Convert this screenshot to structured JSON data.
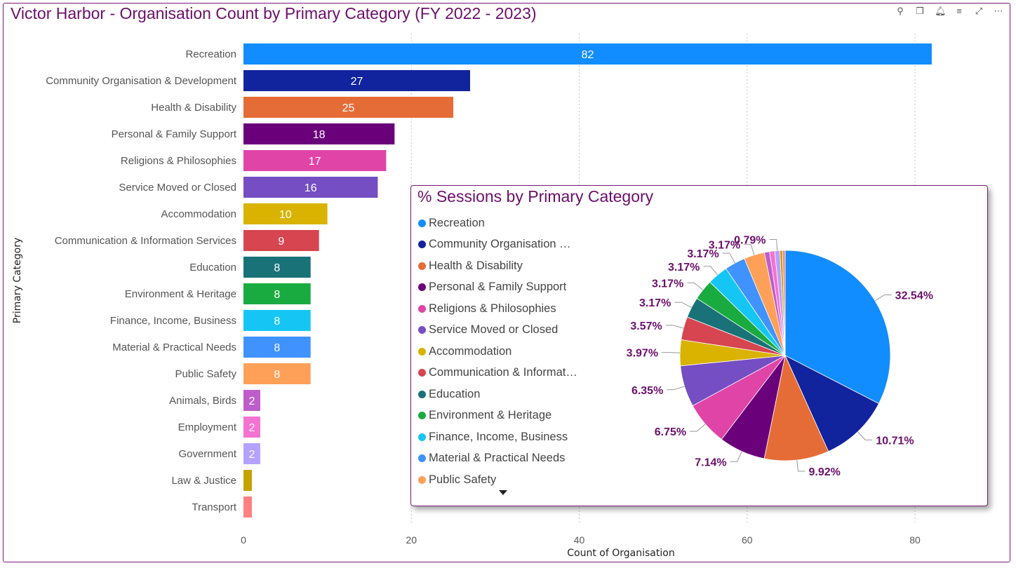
{
  "main_title": "Victor Harbor - Organisation Count by Primary Category (FY 2022 - 2023)",
  "toolbar_icons": [
    "pin-icon",
    "copy-icon",
    "bell-icon",
    "filter-icon",
    "expand-icon",
    "more-icon"
  ],
  "chart_data": [
    {
      "type": "bar",
      "orientation": "horizontal",
      "xlabel": "Count of Organisation",
      "ylabel": "Primary Category",
      "xlim": [
        0,
        90
      ],
      "xticks": [
        0,
        20,
        40,
        60,
        80
      ],
      "grid": true,
      "categories": [
        "Recreation",
        "Community Organisation & Development",
        "Health & Disability",
        "Personal & Family Support",
        "Religions & Philosophies",
        "Service Moved or Closed",
        "Accommodation",
        "Communication & Information Services",
        "Education",
        "Environment & Heritage",
        "Finance, Income, Business",
        "Material & Practical Needs",
        "Public Safety",
        "Animals, Birds",
        "Employment",
        "Government",
        "Law & Justice",
        "Transport"
      ],
      "values": [
        82,
        27,
        25,
        18,
        17,
        16,
        10,
        9,
        8,
        8,
        8,
        8,
        8,
        2,
        2,
        2,
        1,
        1
      ],
      "data_labels": [
        "82",
        "27",
        "25",
        "18",
        "17",
        "16",
        "10",
        "9",
        "8",
        "8",
        "8",
        "8",
        "8",
        "2",
        "2",
        "2",
        "",
        ""
      ],
      "colors": [
        "#118DFF",
        "#12239E",
        "#E66C37",
        "#6B007B",
        "#E044A7",
        "#744EC2",
        "#D9B300",
        "#D64550",
        "#197278",
        "#1AAB40",
        "#15C6F4",
        "#4092FF",
        "#FFA058",
        "#BE5DC9",
        "#F472D0",
        "#B5A1FF",
        "#C4A200",
        "#FF8080"
      ]
    },
    {
      "type": "pie",
      "title": "% Sessions by Primary Category",
      "legend_position": "left",
      "legend": [
        "Recreation",
        "Community Organisation …",
        "Health & Disability",
        "Personal & Family Support",
        "Religions & Philosophies",
        "Service Moved or Closed",
        "Accommodation",
        "Communication & Informat…",
        "Education",
        "Environment & Heritage",
        "Finance, Income, Business",
        "Material & Practical Needs",
        "Public Safety"
      ],
      "slices": [
        {
          "name": "Recreation",
          "value": 32.54,
          "label": "32.54%",
          "color": "#118DFF"
        },
        {
          "name": "Community Organisation & Development",
          "value": 10.71,
          "label": "10.71%",
          "color": "#12239E"
        },
        {
          "name": "Health & Disability",
          "value": 9.92,
          "label": "9.92%",
          "color": "#E66C37"
        },
        {
          "name": "Personal & Family Support",
          "value": 7.14,
          "label": "7.14%",
          "color": "#6B007B"
        },
        {
          "name": "Religions & Philosophies",
          "value": 6.75,
          "label": "6.75%",
          "color": "#E044A7"
        },
        {
          "name": "Service Moved or Closed",
          "value": 6.35,
          "label": "6.35%",
          "color": "#744EC2"
        },
        {
          "name": "Accommodation",
          "value": 3.97,
          "label": "3.97%",
          "color": "#D9B300"
        },
        {
          "name": "Communication & Information Services",
          "value": 3.57,
          "label": "3.57%",
          "color": "#D64550"
        },
        {
          "name": "Education",
          "value": 3.17,
          "label": "3.17%",
          "color": "#197278"
        },
        {
          "name": "Environment & Heritage",
          "value": 3.17,
          "label": "3.17%",
          "color": "#1AAB40"
        },
        {
          "name": "Finance, Income, Business",
          "value": 3.17,
          "label": "3.17%",
          "color": "#15C6F4"
        },
        {
          "name": "Material & Practical Needs",
          "value": 3.17,
          "label": "3.17%",
          "color": "#4092FF"
        },
        {
          "name": "Public Safety",
          "value": 3.17,
          "label": "3.17%",
          "color": "#FFA058"
        },
        {
          "name": "Animals, Birds",
          "value": 0.79,
          "label": "",
          "color": "#BE5DC9"
        },
        {
          "name": "Employment",
          "value": 0.79,
          "label": "",
          "color": "#F472D0"
        },
        {
          "name": "Government",
          "value": 0.79,
          "label": "0.79%",
          "color": "#B5A1FF"
        },
        {
          "name": "Law & Justice",
          "value": 0.4,
          "label": "",
          "color": "#C4A200"
        },
        {
          "name": "Transport",
          "value": 0.4,
          "label": "",
          "color": "#FF8080"
        }
      ]
    }
  ]
}
